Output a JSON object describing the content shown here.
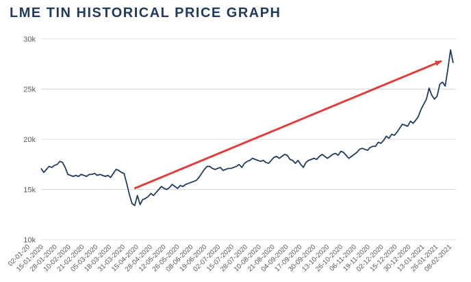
{
  "chart_data": {
    "type": "line",
    "title": "LME TIN HISTORICAL PRICE GRAPH",
    "xlabel": "",
    "ylabel": "",
    "ylim": [
      10000,
      30000
    ],
    "y_ticks": [
      {
        "value": 10000,
        "label": "10k"
      },
      {
        "value": 15000,
        "label": "15k"
      },
      {
        "value": 20000,
        "label": "20k"
      },
      {
        "value": 25000,
        "label": "25k"
      },
      {
        "value": 30000,
        "label": "30k"
      }
    ],
    "x_tick_labels": [
      "02-01-20",
      "15-01-2020",
      "28-01-2020",
      "10-02-2020",
      "21-02-2020",
      "05-03-2020",
      "18-03-2020",
      "31-03-2020",
      "15-04-2020",
      "28-04-2020",
      "12-05-2020",
      "26-05-2020",
      "08-06-2020",
      "19-06-2020",
      "02-07-2020",
      "15-07-2020",
      "28-07-2020",
      "10-08-2020",
      "21-08-2020",
      "04-09-2020",
      "17-09-2020",
      "30-09-2020",
      "13-10-2020",
      "26-10-2020",
      "06-11-2020",
      "19-11-2020",
      "02-12-2020",
      "15-12-2020",
      "30-12-2020",
      "13-01-2021",
      "26-01-2021",
      "08-02-2021"
    ],
    "grid": true,
    "line_color": "#1f3a5c",
    "arrow_color": "#e03c3c",
    "series": [
      {
        "values": [
          17100,
          16700,
          17000,
          17300,
          17200,
          17400,
          17500,
          17800,
          17700,
          17200,
          16500,
          16400,
          16300,
          16400,
          16300,
          16500,
          16400,
          16300,
          16500,
          16500,
          16600,
          16400,
          16500,
          16400,
          16300,
          16400,
          16200,
          16600,
          17000,
          16900,
          16700,
          16600,
          15600,
          14500,
          13600,
          13400,
          14400,
          13500,
          14000,
          14100,
          14300,
          14600,
          14400,
          14700,
          15000,
          15300,
          15100,
          15000,
          15200,
          15500,
          15300,
          15100,
          15400,
          15300,
          15500,
          15600,
          15700,
          15800,
          15900,
          16200,
          16600,
          17000,
          17300,
          17300,
          17100,
          17000,
          17100,
          17200,
          16900,
          17000,
          17100,
          17100,
          17200,
          17300,
          17500,
          17200,
          17600,
          17800,
          17900,
          18100,
          18000,
          17900,
          17800,
          17900,
          17700,
          17600,
          17900,
          18200,
          18300,
          18100,
          18300,
          18500,
          18400,
          18000,
          17900,
          17600,
          17900,
          17500,
          17200,
          17700,
          17900,
          18000,
          18100,
          18000,
          18300,
          18500,
          18300,
          18100,
          18300,
          18500,
          18600,
          18400,
          18800,
          18700,
          18400,
          18100,
          18300,
          18500,
          18700,
          19000,
          19100,
          19000,
          18900,
          19200,
          19300,
          19300,
          19700,
          19600,
          19900,
          20300,
          20100,
          20500,
          20400,
          20700,
          21100,
          21500,
          21400,
          21300,
          21800,
          21600,
          21900,
          22300,
          23000,
          23500,
          24000,
          25100,
          24400,
          24000,
          24300,
          25500,
          25700,
          25300,
          27000,
          28900,
          27600
        ]
      }
    ],
    "annotation": {
      "type": "arrow",
      "from": {
        "x_frac": 0.225,
        "y": 15100
      },
      "to": {
        "x_frac": 0.975,
        "y": 28000
      }
    }
  }
}
